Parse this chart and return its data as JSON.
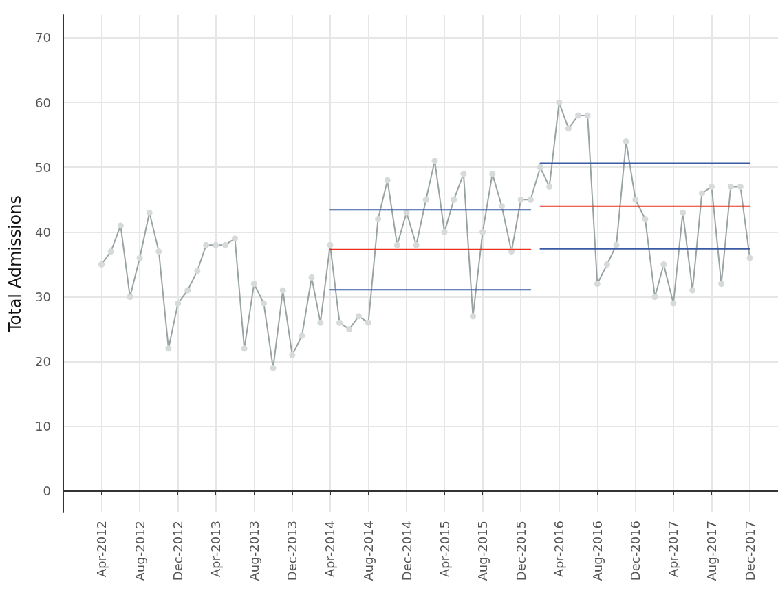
{
  "chart_data": {
    "type": "line",
    "ylabel": "Total Admissions",
    "xlim": [
      "2011-12",
      "2018-03"
    ],
    "ylim": [
      -3.3,
      73.5
    ],
    "yticks": [
      0,
      10,
      20,
      30,
      40,
      50,
      60,
      70
    ],
    "xticks": [
      {
        "value": "2012-04",
        "label": "Apr-2012"
      },
      {
        "value": "2012-08",
        "label": "Aug-2012"
      },
      {
        "value": "2012-12",
        "label": "Dec-2012"
      },
      {
        "value": "2013-04",
        "label": "Apr-2013"
      },
      {
        "value": "2013-08",
        "label": "Aug-2013"
      },
      {
        "value": "2013-12",
        "label": "Dec-2013"
      },
      {
        "value": "2014-04",
        "label": "Apr-2014"
      },
      {
        "value": "2014-08",
        "label": "Aug-2014"
      },
      {
        "value": "2014-12",
        "label": "Dec-2014"
      },
      {
        "value": "2015-04",
        "label": "Apr-2015"
      },
      {
        "value": "2015-08",
        "label": "Aug-2015"
      },
      {
        "value": "2015-12",
        "label": "Dec-2015"
      },
      {
        "value": "2016-04",
        "label": "Apr-2016"
      },
      {
        "value": "2016-08",
        "label": "Aug-2016"
      },
      {
        "value": "2016-12",
        "label": "Dec-2016"
      },
      {
        "value": "2017-04",
        "label": "Apr-2017"
      },
      {
        "value": "2017-08",
        "label": "Aug-2017"
      },
      {
        "value": "2017-12",
        "label": "Dec-2017"
      }
    ],
    "grid": true,
    "marker": "circle",
    "line_style": "solid",
    "series": [
      {
        "color": "#99a3a4",
        "x": [
          "2012-04",
          "2012-05",
          "2012-06",
          "2012-07",
          "2012-08",
          "2012-09",
          "2012-10",
          "2012-11",
          "2012-12",
          "2013-01",
          "2013-02",
          "2013-03",
          "2013-04",
          "2013-05",
          "2013-06",
          "2013-07",
          "2013-08",
          "2013-09",
          "2013-10",
          "2013-11",
          "2013-12",
          "2014-01",
          "2014-02",
          "2014-03",
          "2014-04",
          "2014-05",
          "2014-06",
          "2014-07",
          "2014-08",
          "2014-09",
          "2014-10",
          "2014-11",
          "2014-12",
          "2015-01",
          "2015-02",
          "2015-03",
          "2015-04",
          "2015-05",
          "2015-06",
          "2015-07",
          "2015-08",
          "2015-09",
          "2015-10",
          "2015-11",
          "2015-12",
          "2016-01",
          "2016-02",
          "2016-03",
          "2016-04",
          "2016-05",
          "2016-06",
          "2016-07",
          "2016-08",
          "2016-09",
          "2016-10",
          "2016-11",
          "2016-12",
          "2017-01",
          "2017-02",
          "2017-03",
          "2017-04",
          "2017-05",
          "2017-06",
          "2017-07",
          "2017-08",
          "2017-09",
          "2017-10",
          "2017-11",
          "2017-12"
        ],
        "values": [
          35,
          37,
          41,
          30,
          36,
          43,
          37,
          22,
          29,
          31,
          34,
          38,
          38,
          38,
          39,
          22,
          32,
          29,
          19,
          31,
          21,
          24,
          33,
          26,
          38,
          26,
          25,
          27,
          26,
          42,
          48,
          38,
          43,
          38,
          45,
          51,
          40,
          45,
          49,
          27,
          40,
          49,
          44,
          37,
          45,
          45,
          50,
          47,
          60,
          56,
          58,
          58,
          32,
          35,
          38,
          54,
          45,
          42,
          30,
          35,
          29,
          43,
          31,
          46,
          47,
          32,
          47,
          47,
          36
        ]
      },
      {
        "color": "#e8321e",
        "marker": "none",
        "x": [
          "2014-04",
          "2016-01"
        ],
        "values": [
          37.3,
          37.3
        ]
      },
      {
        "color": "#3b5ba5",
        "marker": "none",
        "x": [
          "2014-04",
          "2016-01"
        ],
        "values": [
          43.4,
          43.4
        ]
      },
      {
        "color": "#3b5ba5",
        "marker": "none",
        "x": [
          "2014-04",
          "2016-01"
        ],
        "values": [
          31.1,
          31.1
        ]
      },
      {
        "color": "#e8321e",
        "marker": "none",
        "x": [
          "2016-02",
          "2017-12"
        ],
        "values": [
          44.0,
          44.0
        ]
      },
      {
        "color": "#3b5ba5",
        "marker": "none",
        "x": [
          "2016-02",
          "2017-12"
        ],
        "values": [
          50.6,
          50.6
        ]
      },
      {
        "color": "#3b5ba5",
        "marker": "none",
        "x": [
          "2016-02",
          "2017-12"
        ],
        "values": [
          37.4,
          37.4
        ]
      }
    ]
  }
}
